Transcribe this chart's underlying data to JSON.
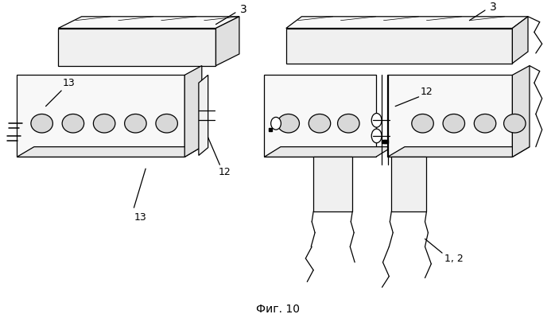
{
  "fig_caption": "Фиг. 10",
  "background_color": "#ffffff"
}
